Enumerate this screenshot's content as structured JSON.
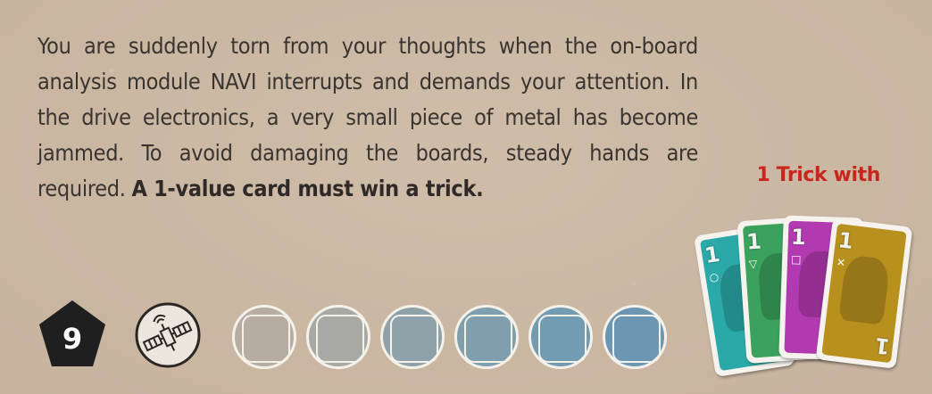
{
  "mission": {
    "number": "9",
    "story_text": "You are suddenly torn from your thoughts when the on-board analysis module NAVI interrupts and demands your attention. In the drive electronics, a very small piece of metal has become jammed. To avoid damaging the boards, steady hands are required.",
    "objective_text": "A 1-value card must win a trick."
  },
  "task": {
    "label": "1 Trick with",
    "cards": [
      {
        "value": "1",
        "suit_symbol": "○",
        "color": "#2aa9a8"
      },
      {
        "value": "1",
        "suit_symbol": "▽",
        "color": "#3aa25c"
      },
      {
        "value": "1",
        "suit_symbol": "□",
        "color": "#b23ab0"
      },
      {
        "value": "1",
        "suit_symbol": "✕",
        "color": "#b8901e"
      }
    ]
  },
  "icons": {
    "mission_badge": "pentagon-badge-icon",
    "module_icon": "satellite-icon",
    "difficulty_slot": "rounded-square-icon"
  },
  "difficulty_colors": [
    "#b6aca2",
    "#a8a9a4",
    "#8fa2a9",
    "#7f9fae",
    "#739bb1",
    "#6b97b2"
  ],
  "colors": {
    "background": "#cbb8a4",
    "text": "#3a3431",
    "accent_red": "#c8261c",
    "badge_dark": "#1f1f1f"
  }
}
